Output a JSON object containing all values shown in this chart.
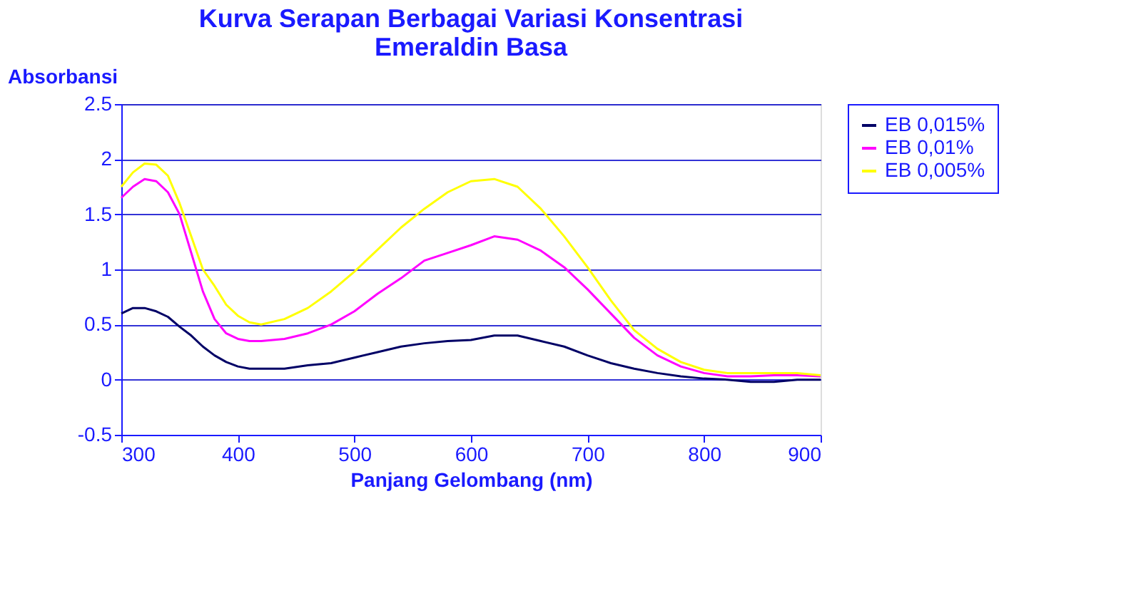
{
  "chart_data": {
    "type": "line",
    "title": "Kurva Serapan Berbagai Variasi Konsentrasi\nEmeraldin Basa",
    "xlabel": "Panjang Gelombang (nm)",
    "ylabel": "Absorbansi",
    "x": [
      300,
      310,
      320,
      330,
      340,
      350,
      360,
      370,
      380,
      390,
      400,
      410,
      420,
      440,
      460,
      480,
      500,
      520,
      540,
      560,
      580,
      600,
      620,
      640,
      660,
      680,
      700,
      720,
      740,
      760,
      780,
      800,
      820,
      840,
      860,
      880,
      900
    ],
    "series": [
      {
        "name": "EB 0,015%",
        "color": "#000066",
        "values": [
          0.6,
          0.65,
          0.65,
          0.62,
          0.57,
          0.48,
          0.4,
          0.3,
          0.22,
          0.16,
          0.12,
          0.1,
          0.1,
          0.1,
          0.13,
          0.15,
          0.2,
          0.25,
          0.3,
          0.33,
          0.35,
          0.36,
          0.4,
          0.4,
          0.35,
          0.3,
          0.22,
          0.15,
          0.1,
          0.06,
          0.03,
          0.01,
          0.0,
          -0.02,
          -0.02,
          0.0,
          0.0
        ]
      },
      {
        "name": "EB 0,01%",
        "color": "#ff00ff",
        "values": [
          1.65,
          1.75,
          1.82,
          1.8,
          1.7,
          1.5,
          1.15,
          0.8,
          0.55,
          0.42,
          0.37,
          0.35,
          0.35,
          0.37,
          0.42,
          0.5,
          0.62,
          0.78,
          0.92,
          1.08,
          1.15,
          1.22,
          1.3,
          1.27,
          1.17,
          1.02,
          0.82,
          0.6,
          0.38,
          0.22,
          0.12,
          0.06,
          0.03,
          0.03,
          0.04,
          0.04,
          0.03
        ]
      },
      {
        "name": "EB 0,005%",
        "color": "#ffff00",
        "values": [
          1.75,
          1.88,
          1.96,
          1.95,
          1.85,
          1.6,
          1.3,
          1.0,
          0.85,
          0.68,
          0.58,
          0.52,
          0.5,
          0.55,
          0.65,
          0.8,
          0.98,
          1.18,
          1.38,
          1.55,
          1.7,
          1.8,
          1.82,
          1.75,
          1.55,
          1.3,
          1.02,
          0.72,
          0.45,
          0.28,
          0.16,
          0.09,
          0.06,
          0.06,
          0.06,
          0.06,
          0.04
        ]
      }
    ],
    "xlim": [
      300,
      900
    ],
    "xticks": [
      300,
      400,
      500,
      600,
      700,
      800,
      900
    ],
    "ylim": [
      -0.5,
      2.5
    ],
    "yticks": [
      -0.5,
      0,
      0.5,
      1,
      1.5,
      2,
      2.5
    ],
    "grid": "y",
    "legend": "right",
    "marker": "none",
    "line_style": "solid"
  }
}
